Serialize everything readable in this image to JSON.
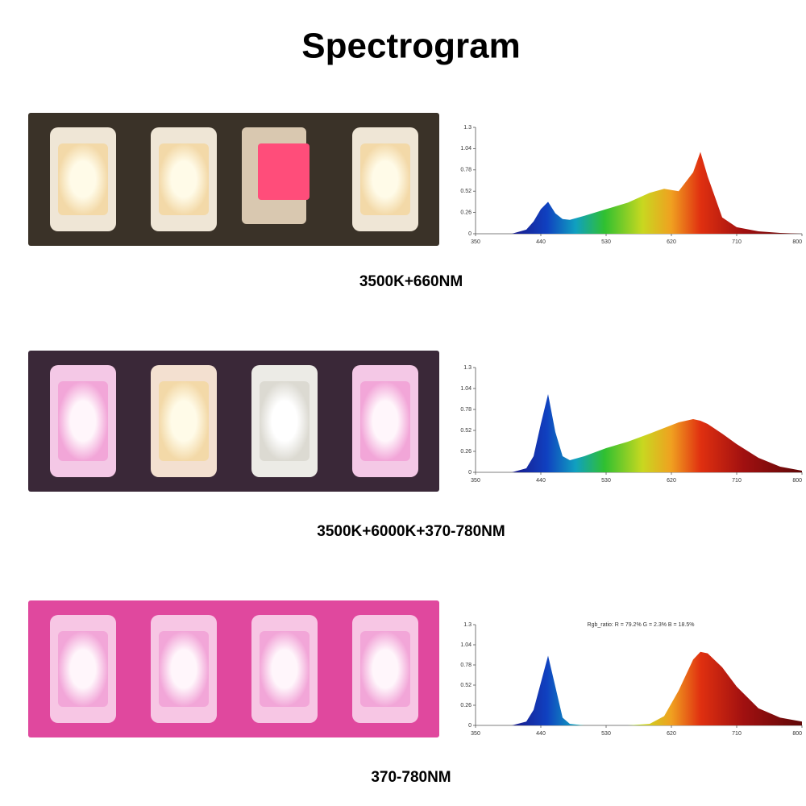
{
  "title": "Spectrogram",
  "chart_data": [
    {
      "type": "area",
      "caption": "3500K+660NM",
      "x": [
        400,
        420,
        430,
        440,
        450,
        460,
        470,
        480,
        500,
        530,
        560,
        590,
        610,
        630,
        650,
        660,
        670,
        690,
        710,
        740,
        770,
        800
      ],
      "values": [
        0,
        0.05,
        0.15,
        0.3,
        0.39,
        0.25,
        0.18,
        0.17,
        0.22,
        0.3,
        0.38,
        0.5,
        0.55,
        0.52,
        0.75,
        1.0,
        0.7,
        0.2,
        0.08,
        0.03,
        0.01,
        0
      ],
      "xlim": [
        350,
        800
      ],
      "xticks": [
        350,
        440,
        530,
        620,
        710,
        800
      ],
      "ylim": [
        0,
        1.3
      ],
      "yticks": [
        0,
        0.26,
        0.52,
        0.78,
        1.04,
        1.3
      ]
    },
    {
      "type": "area",
      "caption": "3500K+6000K+370-780NM",
      "x": [
        400,
        420,
        430,
        440,
        450,
        460,
        470,
        480,
        500,
        530,
        560,
        590,
        610,
        630,
        650,
        660,
        670,
        690,
        710,
        740,
        770,
        800
      ],
      "values": [
        0,
        0.05,
        0.2,
        0.6,
        0.97,
        0.5,
        0.2,
        0.15,
        0.2,
        0.3,
        0.38,
        0.48,
        0.55,
        0.62,
        0.66,
        0.64,
        0.6,
        0.48,
        0.35,
        0.18,
        0.07,
        0.02
      ],
      "xlim": [
        350,
        800
      ],
      "xticks": [
        350,
        440,
        530,
        620,
        710,
        800
      ],
      "ylim": [
        0,
        1.3
      ],
      "yticks": [
        0,
        0.26,
        0.52,
        0.78,
        1.04,
        1.3
      ]
    },
    {
      "type": "area",
      "caption": "370-780NM",
      "annotation": "Rgb_ratio: R = 79.2% G = 2.3% B = 18.5%",
      "x": [
        400,
        420,
        430,
        440,
        450,
        460,
        470,
        480,
        500,
        530,
        560,
        590,
        610,
        630,
        650,
        660,
        670,
        690,
        710,
        740,
        770,
        800
      ],
      "values": [
        0,
        0.05,
        0.2,
        0.55,
        0.9,
        0.5,
        0.1,
        0.02,
        0,
        0,
        0,
        0.02,
        0.12,
        0.45,
        0.85,
        0.95,
        0.93,
        0.75,
        0.5,
        0.22,
        0.1,
        0.05
      ],
      "xlim": [
        350,
        800
      ],
      "xticks": [
        350,
        440,
        530,
        620,
        710,
        800
      ],
      "ylim": [
        0,
        1.3
      ],
      "yticks": [
        0,
        0.26,
        0.52,
        0.78,
        1.04,
        1.3
      ]
    }
  ]
}
